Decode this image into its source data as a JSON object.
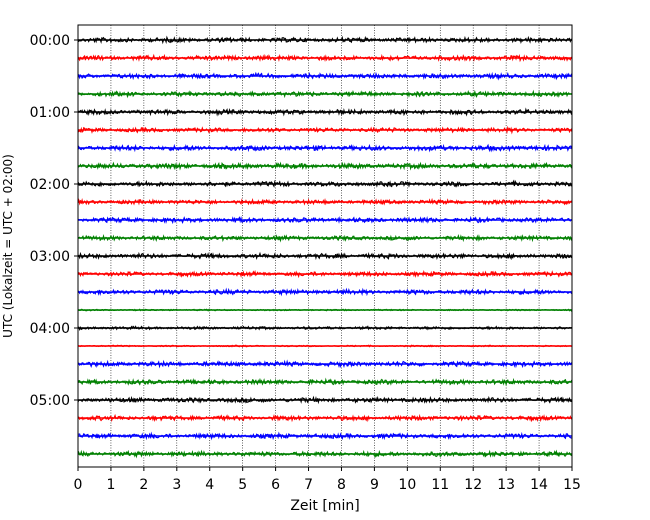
{
  "chart_data": {
    "type": "line",
    "title": "",
    "xlabel": "Zeit  [min]",
    "ylabel": "UTC (Lokalzeit = UTC + 02:00)",
    "xlim": [
      0,
      15
    ],
    "x_ticks": [
      0,
      1,
      2,
      3,
      4,
      5,
      6,
      7,
      8,
      9,
      10,
      11,
      12,
      13,
      14,
      15
    ],
    "x_tick_labels": [
      "0",
      "1",
      "2",
      "3",
      "4",
      "5",
      "6",
      "7",
      "8",
      "9",
      "10",
      "11",
      "12",
      "13",
      "14",
      "15"
    ],
    "y_tick_labels": [
      "00:00",
      "01:00",
      "02:00",
      "03:00",
      "04:00",
      "05:00"
    ],
    "y_tick_rows": [
      0,
      4,
      8,
      12,
      16,
      20
    ],
    "row_interval_minutes": 15,
    "row_count": 24,
    "grid_vertical": true,
    "colors": [
      "#000000",
      "#ff0000",
      "#0000ff",
      "#008000"
    ],
    "rows": [
      {
        "label": "00:00",
        "amplitude": 1.0
      },
      {
        "label": "00:15",
        "amplitude": 1.0
      },
      {
        "label": "00:30",
        "amplitude": 1.0
      },
      {
        "label": "00:45",
        "amplitude": 1.0
      },
      {
        "label": "01:00",
        "amplitude": 1.0
      },
      {
        "label": "01:15",
        "amplitude": 0.9
      },
      {
        "label": "01:30",
        "amplitude": 1.1
      },
      {
        "label": "01:45",
        "amplitude": 1.1
      },
      {
        "label": "02:00",
        "amplitude": 1.0
      },
      {
        "label": "02:15",
        "amplitude": 0.9
      },
      {
        "label": "02:30",
        "amplitude": 1.0
      },
      {
        "label": "02:45",
        "amplitude": 0.9
      },
      {
        "label": "03:00",
        "amplitude": 1.0
      },
      {
        "label": "03:15",
        "amplitude": 0.9
      },
      {
        "label": "03:30",
        "amplitude": 1.0
      },
      {
        "label": "03:45",
        "amplitude": 0.3
      },
      {
        "label": "04:00",
        "amplitude": 0.6
      },
      {
        "label": "04:15",
        "amplitude": 0.3
      },
      {
        "label": "04:30",
        "amplitude": 1.0
      },
      {
        "label": "04:45",
        "amplitude": 1.0
      },
      {
        "label": "05:00",
        "amplitude": 1.0
      },
      {
        "label": "05:15",
        "amplitude": 1.0
      },
      {
        "label": "05:30",
        "amplitude": 1.0
      },
      {
        "label": "05:45",
        "amplitude": 1.0
      }
    ]
  }
}
